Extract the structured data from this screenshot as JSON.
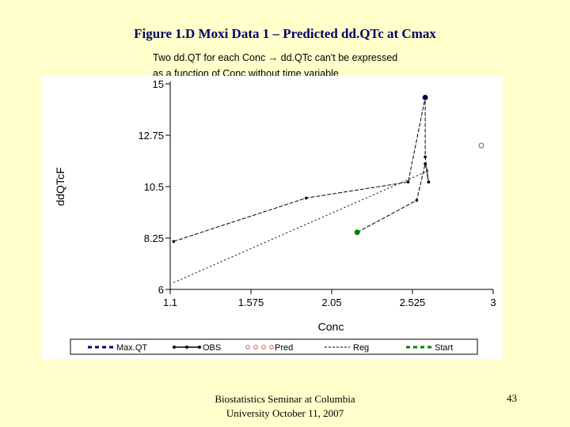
{
  "slide": {
    "title": "Figure 1.D Moxi Data 1 – Predicted dd.QTc at Cmax",
    "note_line1": "Two dd.QT for each Conc → dd.QTc can't be expressed",
    "note_line2": "as a function of Conc without time variable",
    "footer_line1": "Biostatistics Seminar at Columbia",
    "footer_line2": "University October 11, 2007",
    "page_number": "43"
  },
  "chart_data": {
    "type": "line",
    "title": "",
    "xlabel": "Conc",
    "ylabel": "ddQTcF",
    "xlim": [
      1.1,
      3
    ],
    "ylim": [
      6,
      15
    ],
    "x_ticks": [
      "1.1",
      "1.575",
      "2.05",
      "2.525",
      "3"
    ],
    "y_ticks": [
      "6",
      "8.25",
      "10.5",
      "12.75",
      "15"
    ],
    "grid": false,
    "legend_position": "bottom",
    "series": [
      {
        "name": "Max.QT",
        "color": "#000080",
        "style": "marker",
        "points": [
          [
            2.6,
            14.4
          ]
        ]
      },
      {
        "name": "OBS",
        "color": "#000000",
        "style": "solid-with-dots",
        "points": [
          [
            1.12,
            8.1
          ],
          [
            1.9,
            10.0
          ],
          [
            2.5,
            10.7
          ],
          [
            2.6,
            14.4
          ],
          [
            2.6,
            11.8
          ],
          [
            2.62,
            10.7
          ]
        ]
      },
      {
        "name": "OBS",
        "color": "#000000",
        "style": "solid-with-dots",
        "points": [
          [
            2.2,
            8.5
          ],
          [
            2.55,
            9.9
          ],
          [
            2.6,
            11.5
          ],
          [
            2.62,
            10.7
          ]
        ]
      },
      {
        "name": "Pred",
        "color": "#cc3333",
        "style": "open-circle",
        "points": [
          [
            2.93,
            12.3
          ]
        ]
      },
      {
        "name": "Reg",
        "color": "#000000",
        "style": "dotted",
        "points": [
          [
            1.12,
            6.3
          ],
          [
            2.62,
            11.2
          ]
        ]
      },
      {
        "name": "Start",
        "color": "#008000",
        "style": "marker",
        "points": [
          [
            2.2,
            8.5
          ]
        ]
      }
    ],
    "legend": [
      {
        "name": "Max.QT",
        "color": "#000080",
        "style": "dashed-thick"
      },
      {
        "name": "OBS",
        "color": "#000000",
        "style": "solid-with-dots"
      },
      {
        "name": "Pred",
        "color": "#cc3333",
        "style": "open-circle"
      },
      {
        "name": "Reg",
        "color": "#000000",
        "style": "dashed-thin"
      },
      {
        "name": "Start",
        "color": "#008000",
        "style": "dashed-thick"
      }
    ]
  }
}
